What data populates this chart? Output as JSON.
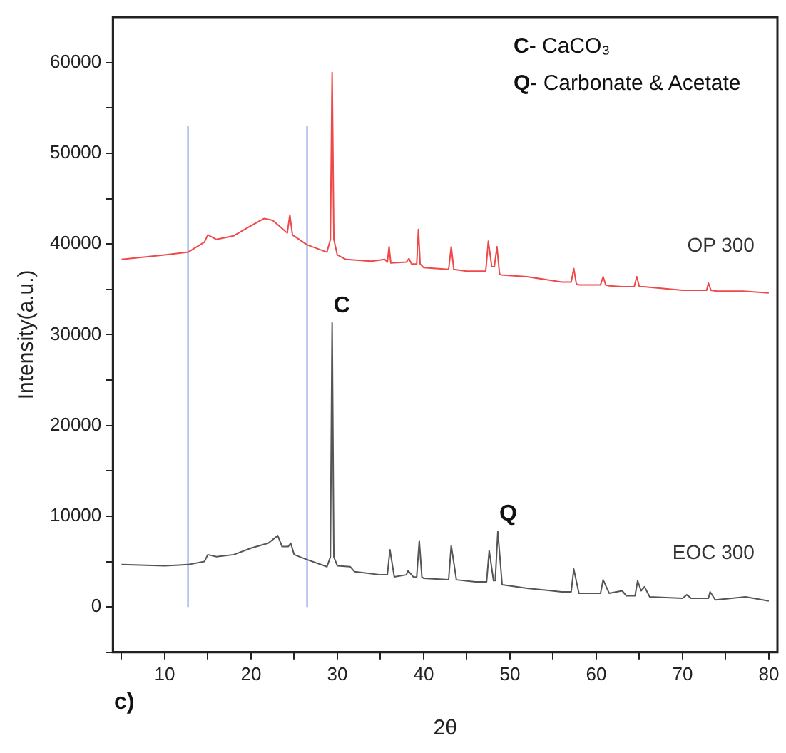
{
  "chart_data": {
    "type": "line",
    "xlabel": "2θ",
    "ylabel": "Intensity(a.u.)",
    "xlim": [
      4,
      81
    ],
    "ylim": [
      -5000,
      65000
    ],
    "xticks": [
      {
        "value": 5,
        "label": null
      },
      10,
      {
        "value": 15,
        "label": null
      },
      20,
      {
        "value": 25,
        "label": null
      },
      30,
      {
        "value": 35,
        "label": null
      },
      40,
      {
        "value": 45,
        "label": null
      },
      50,
      {
        "value": 55,
        "label": null
      },
      60,
      {
        "value": 65,
        "label": null
      },
      70,
      {
        "value": 75,
        "label": null
      },
      80
    ],
    "yticks": [
      {
        "value": -5000,
        "label": null
      },
      0,
      {
        "value": 5000,
        "label": null
      },
      10000,
      {
        "value": 15000,
        "label": null
      },
      20000,
      {
        "value": 25000,
        "label": null
      },
      30000,
      {
        "value": 35000,
        "label": null
      },
      40000,
      {
        "value": 45000,
        "label": null
      },
      50000,
      {
        "value": 55000,
        "label": null
      },
      60000
    ],
    "grid": false,
    "legend": false,
    "marker": "none",
    "line_style": "solid",
    "series": [
      {
        "name": "OP 300",
        "color": "#f04848",
        "x": [
          5,
          10,
          12.7,
          14.6,
          15,
          16,
          18,
          20,
          21.5,
          22.5,
          23.5,
          24.2,
          24.5,
          24.8,
          26.5,
          28.8,
          29.2,
          29.4,
          29.6,
          30,
          31,
          34,
          35.5,
          35.8,
          36,
          36.2,
          38,
          38.3,
          38.6,
          39.2,
          39.4,
          39.6,
          40,
          42.9,
          43.2,
          43.5,
          45,
          47.2,
          47.5,
          47.9,
          48.2,
          48.5,
          48.8,
          49,
          52,
          56,
          57.1,
          57.4,
          57.7,
          58,
          60.5,
          60.8,
          61.1,
          61.5,
          63,
          64.4,
          64.7,
          65,
          65.5,
          70,
          72.8,
          73,
          73.3,
          74,
          77,
          80
        ],
        "values": [
          38300,
          38800,
          39100,
          40200,
          41000,
          40500,
          40900,
          42000,
          42800,
          42600,
          41800,
          41200,
          43200,
          41000,
          39900,
          39100,
          40500,
          58900,
          40500,
          38800,
          38300,
          38100,
          38300,
          38000,
          39700,
          37900,
          38000,
          38400,
          37800,
          37800,
          41600,
          37800,
          37400,
          37200,
          39700,
          37200,
          37000,
          37000,
          40300,
          37500,
          37500,
          39700,
          36700,
          36600,
          36400,
          35800,
          35800,
          37300,
          35600,
          35500,
          35500,
          36400,
          35500,
          35400,
          35300,
          35300,
          36400,
          35300,
          35300,
          34900,
          34900,
          35700,
          34900,
          34800,
          34800,
          34600
        ]
      },
      {
        "name": "EOC 300",
        "color": "#555555",
        "x": [
          5,
          10,
          12.7,
          14.6,
          15,
          16,
          18,
          20,
          22,
          23.1,
          23.6,
          24.3,
          24.6,
          25,
          26.5,
          28.8,
          29.2,
          29.4,
          29.6,
          30,
          31.5,
          32,
          35,
          35.8,
          36.1,
          36.6,
          38,
          38.2,
          38.8,
          39.2,
          39.5,
          39.8,
          40,
          42.9,
          43.2,
          43.8,
          46,
          47.3,
          47.6,
          48.1,
          48.3,
          48.6,
          49.1,
          52,
          56,
          57.1,
          57.4,
          58,
          60.5,
          60.8,
          61.5,
          63,
          63.5,
          64.5,
          64.8,
          65.2,
          65.6,
          66.2,
          70,
          70.5,
          71,
          73,
          73.2,
          73.8,
          77.3,
          80
        ],
        "values": [
          4660,
          4540,
          4660,
          5000,
          5760,
          5540,
          5760,
          6480,
          7030,
          7860,
          6650,
          6650,
          7030,
          5760,
          5210,
          4430,
          5500,
          31300,
          5500,
          4540,
          4430,
          3880,
          3540,
          3540,
          6300,
          3320,
          3540,
          3990,
          3320,
          3300,
          7300,
          3300,
          3160,
          3000,
          6760,
          2990,
          2770,
          2770,
          6210,
          2900,
          2900,
          8300,
          2450,
          2060,
          1670,
          1670,
          4170,
          1510,
          1510,
          2990,
          1510,
          1780,
          1230,
          1230,
          2880,
          1780,
          2220,
          1120,
          950,
          1340,
          950,
          950,
          1670,
          780,
          1120,
          670
        ]
      },
      {
        "color": "#9fb6e4",
        "x": [
          12.7,
          12.7
        ],
        "values": [
          0,
          53000
        ]
      },
      {
        "color": "#9fb6e4",
        "x": [
          26.5,
          26.5
        ],
        "values": [
          0,
          53000
        ]
      }
    ],
    "annotations": [
      {
        "text": "C",
        "x": 29.4,
        "y": 31300
      },
      {
        "text": "Q",
        "x": 48.6,
        "y": 8300
      },
      "C- CaCO₃",
      "Q- Carbonate & Acetate",
      "c)"
    ]
  }
}
